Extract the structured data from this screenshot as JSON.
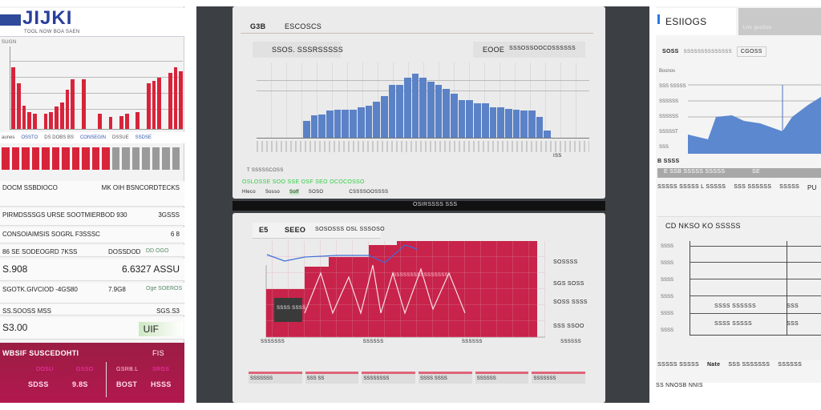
{
  "left": {
    "logo": "JIJKI",
    "subtitle": "TOOL NOW BOA SAEN",
    "chart_label": "SUGN",
    "bar_values": [
      75,
      55,
      28,
      20,
      18,
      0,
      18,
      20,
      27,
      32,
      48,
      60,
      0,
      60,
      0,
      0,
      18,
      0,
      15,
      0,
      16,
      18,
      0,
      20,
      0,
      55,
      58,
      62,
      0,
      68,
      75,
      70
    ],
    "legend": [
      "aunes",
      "OSSTO",
      "DS DOBS BS",
      "CONSEGIN",
      "DSSUE",
      "SSDSE"
    ],
    "strip_red": 11,
    "strip_gray": 7,
    "rows": [
      {
        "a": "DOCM SSBDIOCO",
        "b": "MK OIH BSNCORDTECKS"
      },
      {
        "a": "PIRMDSSSGS URSE SOOTMIERBOD 930",
        "b": "3GSSS"
      },
      {
        "a": "CONSOIAIMSIS SOGRL F3SSSC",
        "b": "6 8"
      },
      {
        "a": "86 SE SODEOGRD 7KSS",
        "b": "DOSSDOD",
        "c": "DD OGO"
      },
      {
        "a": "S.908",
        "b": "6.6327 ASSU"
      },
      {
        "a": "SGOTK.GIVCIOD -4GS80",
        "b": "7.9G8",
        "c": "Oge SOEROS"
      },
      {
        "a": "SS.SOOSS MSS",
        "b": "SGS.S3"
      },
      {
        "a": "S3.00",
        "b": "UIF"
      }
    ],
    "footer": {
      "title": "WBSIF SUSCEDOHTI",
      "tag": "FIS",
      "heads": [
        "DOSU",
        "GSSO",
        "GSRB.L",
        "SRGS"
      ],
      "vals": [
        "SDSS",
        "9.8S",
        "BOST",
        "HSSS"
      ]
    }
  },
  "top_panel": {
    "tab_a": "G3B",
    "tab_b": "ESCOSCS",
    "box_left": "SSOS. SSSRSSSSS",
    "box_right_a": "EOOE",
    "box_right_b": "SSSOSSOOCOSSSSSS",
    "bar_values": [
      22,
      30,
      31,
      36,
      37,
      37,
      37,
      40,
      43,
      48,
      55,
      70,
      70,
      80,
      85,
      80,
      75,
      70,
      65,
      58,
      50,
      50,
      46,
      46,
      40,
      40,
      38,
      37,
      36,
      36,
      28,
      10
    ],
    "x_end": "ISS",
    "note": "T SSSSSCOSS",
    "green_line": "OSLOSSE SOO SSE OSF  SEO OCOCOSSO",
    "bottom_items": [
      "Hleco",
      "Sosso",
      "Soff",
      "SOSO",
      "CSSSSOOSSSS"
    ]
  },
  "bottom_panel": {
    "tab_a": "E5",
    "title": "SEEO",
    "subtitle": "SOSOSSS OSL SSSOSO",
    "inner_label": "SSSSSSSSSSSSSSSS",
    "box_label": "SSSS SSSS",
    "side": [
      "SOSSSS",
      "SGS SOSS",
      "SOSS SSSS",
      "SSS SSOO"
    ],
    "x_labels": [
      "SSSSSSS",
      "SSSSSS",
      "SSSSSS",
      "SSSSSS"
    ],
    "bottom_items": [
      "SSSSSSS",
      "SSS SS",
      "SSSSSSSS",
      "SSSS SSSS",
      "SSSSSS",
      "SSSSSSS"
    ],
    "strip_label": "OSIRSSSS SSS"
  },
  "right": {
    "title": "ESIIOGS",
    "search": "Ltnr gsoSsn",
    "filter_a": "SOSS",
    "filter_b": "SSSSSSSSSSSSSS",
    "filter_c": "CGOSS",
    "ylabels": [
      "Bosnos",
      "SSS SSSSS",
      "SSSSSS",
      "SSSSSS",
      "SSSSST",
      "SSS"
    ],
    "footer_a": "B SSSS",
    "bar_a": "E SSB SSSSS SSSSS",
    "bar_b": "SE",
    "row1": [
      "SSSSS SSSSS L SSSSS",
      "SSS SSSSSS",
      "SSSSS",
      "PU"
    ],
    "chart2_title": "CD NKSO KO SSSSS",
    "y2": [
      "SSSS",
      "SSSS",
      "SSSS",
      "SSSS",
      "SSSS",
      "SSSS"
    ],
    "legend2": [
      "SSSS SSSSSS",
      "SSS",
      "SSSS SSSSS",
      "SSS"
    ],
    "row2": [
      "SSSSS SSSSS",
      "Nate",
      "SSS SSSSSSS",
      "SSSSSS"
    ],
    "footer_b": "SS NNOSB NNIS"
  },
  "colors": {
    "red": "#d7243a",
    "blue": "#5b82c6",
    "crimson": "#a41d45",
    "dark": "#3c3f44"
  }
}
